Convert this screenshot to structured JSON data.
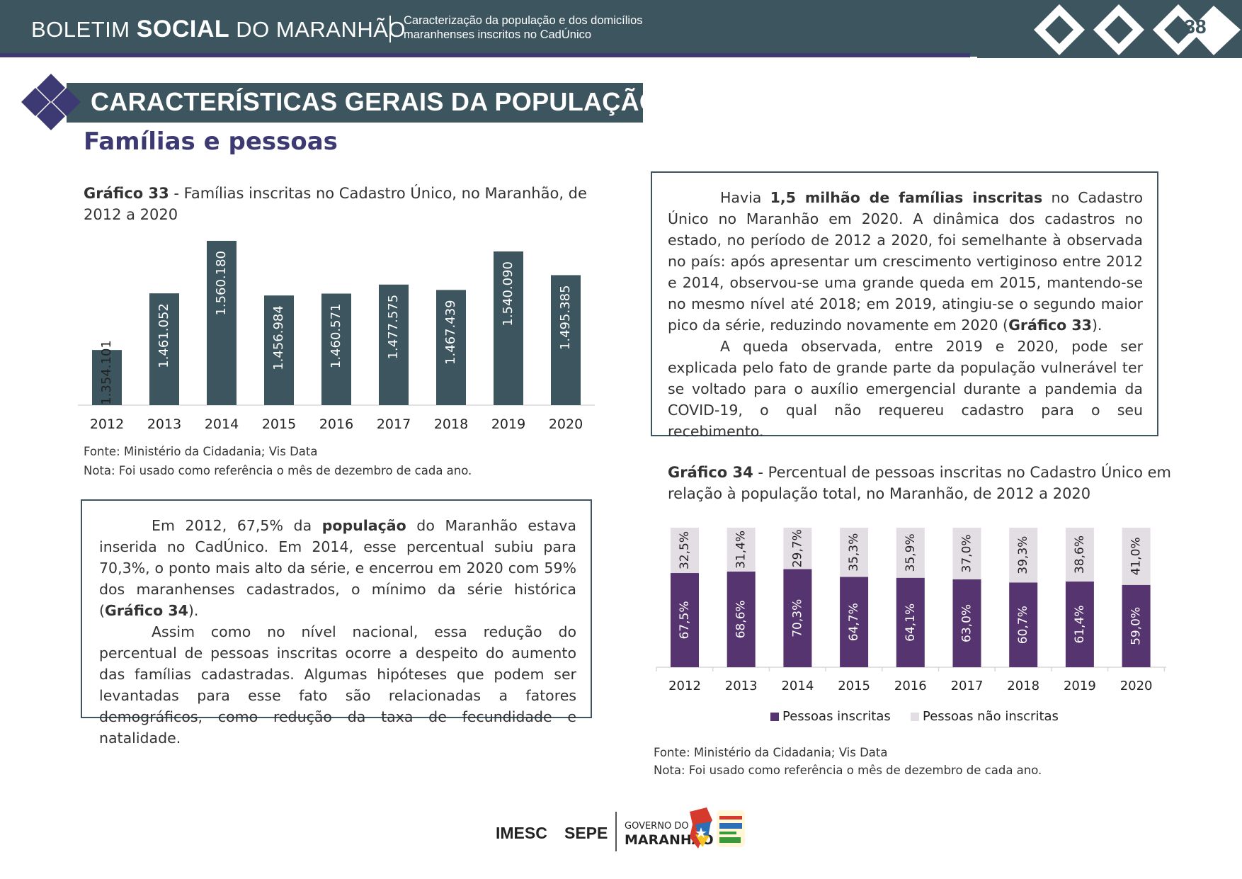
{
  "header": {
    "brand_prefix": "BOLETIM",
    "brand_bold": "SOCIAL",
    "brand_suffix": "DO MARANHÃO",
    "subtitle_line1": "Caracterização da população e dos domicílios",
    "subtitle_line2": "maranhenses inscritos no CadÚnico",
    "page_number": "38",
    "colors": {
      "bar": "#3c555f",
      "accent": "#3d3a73"
    }
  },
  "section": {
    "title": "CARACTERÍSTICAS GERAIS DA POPULAÇÃO",
    "subtitle": "Famílias e pessoas"
  },
  "chart33": {
    "caption_bold": "Gráfico 33",
    "caption_rest_line1": " - Famílias inscritas no Cadastro Único, no Maranhão, de",
    "caption_line2": "2012 a 2020",
    "source": "Fonte: Ministério da Cidadania; Vis Data",
    "note": "Nota: Foi usado como referência o mês de dezembro de cada ano."
  },
  "chart34": {
    "caption_bold": "Gráfico 34",
    "caption_rest_line1": " - Percentual de pessoas inscritas no Cadastro Único em",
    "caption_line2": "relação à população total, no Maranhão, de 2012 a 2020",
    "source": "Fonte: Ministério da Cidadania; Vis Data",
    "note": "Nota: Foi usado como referência o mês de dezembro de cada ano."
  },
  "textbox_right": {
    "p1_a": "Havia ",
    "p1_b": "1,5 milhão de famílias inscritas",
    "p1_c": " no Cadastro Único no Maranhão em 2020. A dinâmica dos cadastros no estado, no período de 2012 a 2020, foi semelhante à observada no país: após apresentar um crescimento vertiginoso entre 2012 e 2014, observou-se uma grande queda em 2015, mantendo-se no mesmo nível até 2018; em 2019, atingiu-se o segundo maior pico da série, reduzindo novamente em 2020 (",
    "p1_ref": "Gráfico 33",
    "p1_end": ").",
    "p2": "A queda observada, entre 2019 e 2020, pode ser explicada pelo fato de grande parte da população vulnerável ter se voltado para o auxílio emergencial durante a pandemia da COVID-19, o qual não requereu cadastro para o seu recebimento."
  },
  "textbox_left": {
    "p1_a": "Em 2012, 67,5% da ",
    "p1_b": "população",
    "p1_c": " do Maranhão estava inserida no CadÚnico. Em 2014, esse percentual subiu para 70,3%, o ponto mais alto da série, e encerrou em 2020 com 59% dos maranhenses cadastrados, o mínimo da série histórica (",
    "p1_ref": "Gráfico 34",
    "p1_end": ").",
    "p2": "Assim como no nível nacional, essa redução do percentual de pessoas inscritas ocorre a despeito do aumento das famílias cadastradas. Algumas hipóteses que podem ser levantadas para esse fato são relacionadas a fatores demográficos, como redução da taxa de fecundidade e natalidade."
  },
  "footer": {
    "imesc": "IMESC",
    "sepe": "SEPE",
    "gov_line1": "GOVERNO DO",
    "gov_line2": "MARANHÃO"
  },
  "chart_data": [
    {
      "type": "bar",
      "categories": [
        "2012",
        "2013",
        "2014",
        "2015",
        "2016",
        "2017",
        "2018",
        "2019",
        "2020"
      ],
      "values": [
        1354101,
        1461052,
        1560180,
        1456984,
        1460571,
        1477575,
        1467439,
        1540090,
        1495385
      ],
      "labels": [
        "1.354.101",
        "1.461.052",
        "1.560.180",
        "1.456.984",
        "1.460.571",
        "1.477.575",
        "1.467.439",
        "1.540.090",
        "1.495.385"
      ],
      "ylim": [
        1250000,
        1560180
      ],
      "color": "#3c555f",
      "title": "",
      "xlabel": "",
      "ylabel": ""
    },
    {
      "type": "bar",
      "stacked": true,
      "percent": true,
      "categories": [
        "2012",
        "2013",
        "2014",
        "2015",
        "2016",
        "2017",
        "2018",
        "2019",
        "2020"
      ],
      "series": [
        {
          "name": "Pessoas inscritas",
          "color": "#56346f",
          "values": [
            67.5,
            68.6,
            70.3,
            64.7,
            64.1,
            63.0,
            60.7,
            61.4,
            59.0
          ],
          "labels": [
            "67,5%",
            "68,6%",
            "70,3%",
            "64,7%",
            "64,1%",
            "63,0%",
            "60,7%",
            "61,4%",
            "59,0%"
          ]
        },
        {
          "name": "Pessoas não inscritas",
          "color": "#e3dee4",
          "values": [
            32.5,
            31.4,
            29.7,
            35.3,
            35.9,
            37.0,
            39.3,
            38.6,
            41.0
          ],
          "labels": [
            "32,5%",
            "31,4%",
            "29,7%",
            "35,3%",
            "35,9%",
            "37,0%",
            "39,3%",
            "38,6%",
            "41,0%"
          ]
        }
      ],
      "legend": "bottom",
      "ylim": [
        0,
        100
      ],
      "title": "",
      "xlabel": "",
      "ylabel": ""
    }
  ]
}
